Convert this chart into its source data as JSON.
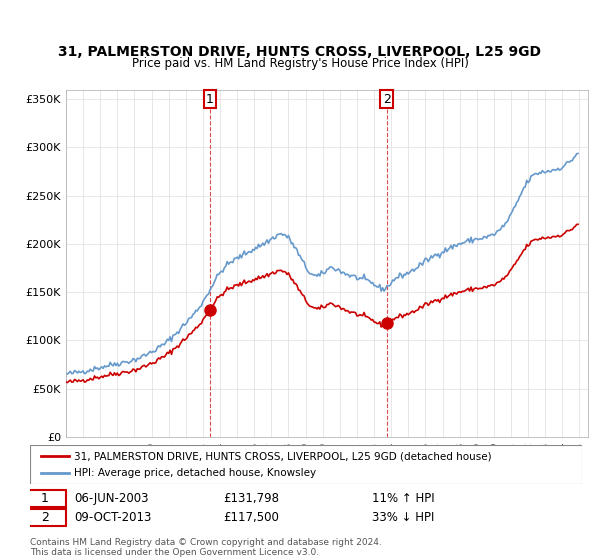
{
  "title": "31, PALMERSTON DRIVE, HUNTS CROSS, LIVERPOOL, L25 9GD",
  "subtitle": "Price paid vs. HM Land Registry's House Price Index (HPI)",
  "legend_property": "31, PALMERSTON DRIVE, HUNTS CROSS, LIVERPOOL, L25 9GD (detached house)",
  "legend_hpi": "HPI: Average price, detached house, Knowsley",
  "footnote": "Contains HM Land Registry data © Crown copyright and database right 2024.\nThis data is licensed under the Open Government Licence v3.0.",
  "property_color": "#cc0000",
  "hpi_color": "#6699cc",
  "marker1_date": "06-JUN-2003",
  "marker1_price": 131798,
  "marker1_label": "11% ↑ HPI",
  "marker2_date": "09-OCT-2013",
  "marker2_price": 117500,
  "marker2_label": "33% ↓ HPI",
  "ylim": [
    0,
    360000
  ],
  "yticks": [
    0,
    50000,
    100000,
    150000,
    200000,
    250000,
    300000,
    350000
  ],
  "background_color": "#ffffff",
  "grid_color": "#dddddd"
}
